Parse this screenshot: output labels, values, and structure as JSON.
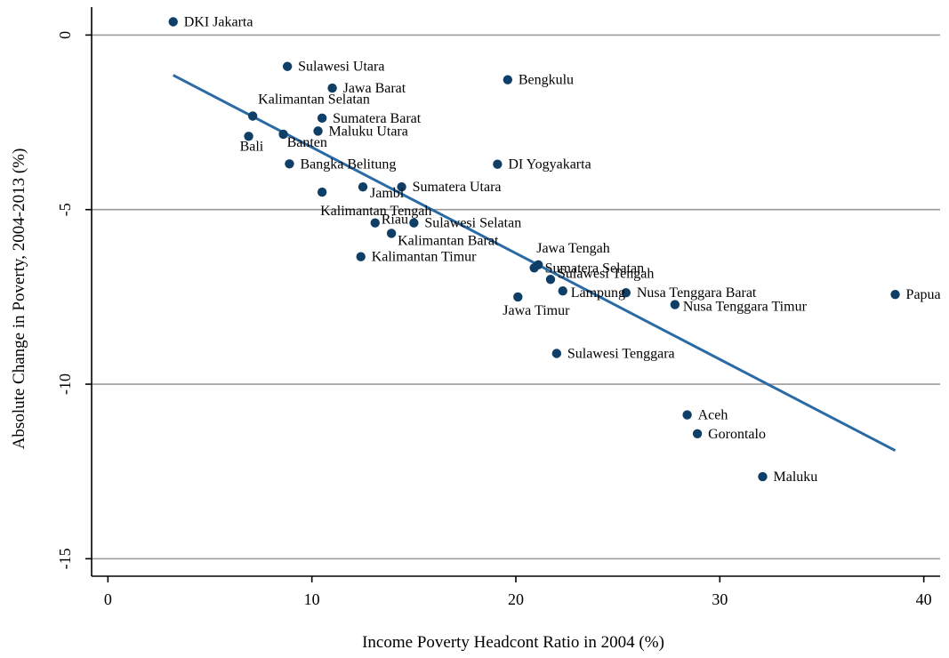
{
  "chart_data": {
    "type": "scatter",
    "xlabel": "Income Poverty Headcont Ratio in 2004 (%)",
    "ylabel": "Absolute Change in Poverty, 2004-2013 (%)",
    "xlim": [
      -0.8,
      40.8
    ],
    "ylim": [
      -15.5,
      0.8
    ],
    "xticks": [
      0,
      10,
      20,
      30,
      40
    ],
    "yticks": [
      0,
      -5,
      -10,
      -15
    ],
    "grid": "horizontal",
    "colors": {
      "point": "#0f3f66",
      "fit_line": "#2b6ba5",
      "grid": "#9a9a9a",
      "axis": "#000000"
    },
    "points": [
      {
        "name": "DKI Jakarta",
        "x": 3.2,
        "y": 0.38
      },
      {
        "name": "Sulawesi Utara",
        "x": 8.8,
        "y": -0.9
      },
      {
        "name": "Jawa Barat",
        "x": 11.0,
        "y": -1.52
      },
      {
        "name": "Bengkulu",
        "x": 19.6,
        "y": -1.28
      },
      {
        "name": "Kalimantan Selatan",
        "x": 7.1,
        "y": -2.32
      },
      {
        "name": "Sumatera Barat",
        "x": 10.5,
        "y": -2.38
      },
      {
        "name": "Maluku Utara",
        "x": 10.3,
        "y": -2.75
      },
      {
        "name": "Banten",
        "x": 8.6,
        "y": -2.84
      },
      {
        "name": "Bali",
        "x": 6.9,
        "y": -2.9
      },
      {
        "name": "Bangka Belitung",
        "x": 8.9,
        "y": -3.69
      },
      {
        "name": "DI Yogyakarta",
        "x": 19.1,
        "y": -3.7
      },
      {
        "name": "Sumatera Utara",
        "x": 14.4,
        "y": -4.35
      },
      {
        "name": "Jambi",
        "x": 12.5,
        "y": -4.35
      },
      {
        "name": "Kalimantan Tengah",
        "x": 10.5,
        "y": -4.5
      },
      {
        "name": "Riau",
        "x": 13.1,
        "y": -5.38
      },
      {
        "name": "Sulawesi Selatan",
        "x": 15.0,
        "y": -5.38
      },
      {
        "name": "Kalimantan Barat",
        "x": 13.9,
        "y": -5.68
      },
      {
        "name": "Kalimantan Timur",
        "x": 12.4,
        "y": -6.35
      },
      {
        "name": "Jawa Tengah",
        "x": 21.1,
        "y": -6.58
      },
      {
        "name": "Sumatera Selatan",
        "x": 20.9,
        "y": -6.67
      },
      {
        "name": "Sulawesi Tengah",
        "x": 21.7,
        "y": -7.0
      },
      {
        "name": "Lampung",
        "x": 22.3,
        "y": -7.33
      },
      {
        "name": "Jawa Timur",
        "x": 20.1,
        "y": -7.5
      },
      {
        "name": "Nusa Tenggara Barat",
        "x": 25.4,
        "y": -7.38
      },
      {
        "name": "Nusa Tenggara Timur",
        "x": 27.8,
        "y": -7.72
      },
      {
        "name": "Papua",
        "x": 38.6,
        "y": -7.43
      },
      {
        "name": "Sulawesi Tenggara",
        "x": 22.0,
        "y": -9.12
      },
      {
        "name": "Aceh",
        "x": 28.4,
        "y": -10.88
      },
      {
        "name": "Gorontalo",
        "x": 28.9,
        "y": -11.42
      },
      {
        "name": "Maluku",
        "x": 32.1,
        "y": -12.65
      }
    ],
    "fit_line": {
      "x": [
        3.2,
        38.6
      ],
      "y": [
        -1.15,
        -11.9
      ]
    }
  }
}
